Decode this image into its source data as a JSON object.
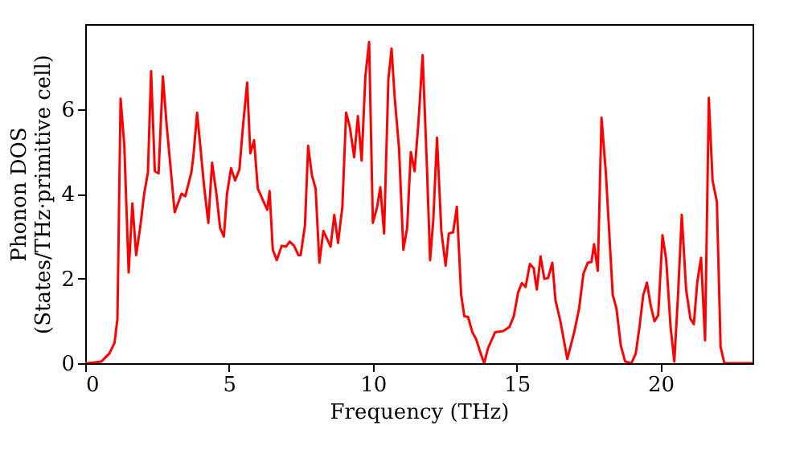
{
  "chart_data": {
    "type": "line",
    "xlabel": "Frequency (THz)",
    "ylabel": "Phonon DOS\n(States/THz·primitive cell)",
    "xlim": [
      0,
      23.2
    ],
    "xticks": [
      0,
      5,
      10,
      15,
      20
    ],
    "ylim": [
      0,
      8
    ],
    "yticks": [
      0,
      2,
      4,
      6
    ],
    "grid": false,
    "series": [
      {
        "color": "#ff0000",
        "x": [
          0,
          0.1,
          0.56,
          0.84,
          1.02,
          1.12,
          1.23,
          1.36,
          1.51,
          1.64,
          1.77,
          1.92,
          2.05,
          2.18,
          2.29,
          2.42,
          2.55,
          2.7,
          2.83,
          3.11,
          3.35,
          3.48,
          3.69,
          3.76,
          3.89,
          4.0,
          4.13,
          4.28,
          4.41,
          4.56,
          4.69,
          4.82,
          4.93,
          5.07,
          5.21,
          5.36,
          5.49,
          5.63,
          5.74,
          5.87,
          6.0,
          6.24,
          6.33,
          6.41,
          6.52,
          6.66,
          6.83,
          6.98,
          7.11,
          7.26,
          7.41,
          7.49,
          7.64,
          7.75,
          7.88,
          8.01,
          8.14,
          8.28,
          8.53,
          8.66,
          8.79,
          8.94,
          9.07,
          9.2,
          9.35,
          9.48,
          9.61,
          9.74,
          9.87,
          10.0,
          10.15,
          10.26,
          10.39,
          10.54,
          10.65,
          10.76,
          10.91,
          11.06,
          11.19,
          11.32,
          11.45,
          11.58,
          11.73,
          11.88,
          11.99,
          12.1,
          12.23,
          12.38,
          12.53,
          12.64,
          12.79,
          12.92,
          13.07,
          13.18,
          13.31,
          13.46,
          13.59,
          13.72,
          13.87,
          14.0,
          14.25,
          14.53,
          14.75,
          14.9,
          15.05,
          15.18,
          15.31,
          15.46,
          15.59,
          15.7,
          15.83,
          15.96,
          16.09,
          16.24,
          16.35,
          16.52,
          16.76,
          17.0,
          17.17,
          17.32,
          17.47,
          17.6,
          17.69,
          17.82,
          17.95,
          18.1,
          18.34,
          18.47,
          18.62,
          18.77,
          18.99,
          19.14,
          19.27,
          19.4,
          19.53,
          19.66,
          19.79,
          19.92,
          20.07,
          20.2,
          20.35,
          20.48,
          20.61,
          20.74,
          20.89,
          21.04,
          21.16,
          21.28,
          21.41,
          21.55,
          21.68,
          21.81,
          21.96,
          22.09,
          22.22,
          23.2
        ],
        "values": [
          0,
          0,
          0.04,
          0.23,
          0.48,
          1.05,
          6.24,
          5.13,
          2.14,
          3.77,
          2.55,
          3.25,
          4.0,
          4.5,
          6.89,
          4.53,
          4.48,
          6.77,
          5.63,
          3.56,
          4.0,
          3.94,
          4.5,
          4.88,
          5.91,
          5.13,
          4.19,
          3.31,
          4.73,
          4.0,
          3.19,
          2.99,
          4.0,
          4.6,
          4.31,
          4.57,
          5.63,
          6.62,
          4.95,
          5.26,
          4.12,
          3.75,
          3.62,
          4.06,
          2.68,
          2.43,
          2.77,
          2.75,
          2.87,
          2.77,
          2.55,
          2.55,
          3.25,
          5.13,
          4.44,
          4.12,
          2.37,
          3.12,
          2.75,
          3.5,
          2.84,
          3.69,
          5.91,
          5.57,
          4.86,
          5.83,
          4.78,
          6.77,
          7.58,
          3.31,
          3.69,
          4.15,
          3.06,
          6.71,
          7.42,
          6.26,
          5.07,
          2.68,
          3.18,
          4.98,
          4.53,
          5.63,
          7.27,
          4.63,
          2.43,
          3.37,
          5.32,
          3.12,
          2.3,
          3.06,
          3.09,
          3.69,
          1.61,
          1.11,
          1.09,
          0.73,
          0.57,
          0.29,
          0,
          0.35,
          0.73,
          0.76,
          0.86,
          1.11,
          1.67,
          1.89,
          1.8,
          2.34,
          2.24,
          1.74,
          2.52,
          1.99,
          2.01,
          2.37,
          1.48,
          0.99,
          0.1,
          0.73,
          1.29,
          2.11,
          2.37,
          2.39,
          2.81,
          2.18,
          5.79,
          4.5,
          1.61,
          1.29,
          0.42,
          0.04,
          0,
          0.23,
          0.86,
          1.61,
          1.9,
          1.36,
          0.99,
          1.13,
          3.02,
          2.43,
          0.86,
          0.04,
          1.61,
          3.5,
          1.74,
          1.05,
          0.92,
          1.92,
          2.49,
          0.54,
          6.26,
          4.31,
          3.81,
          0.38,
          0,
          0
        ]
      }
    ]
  }
}
